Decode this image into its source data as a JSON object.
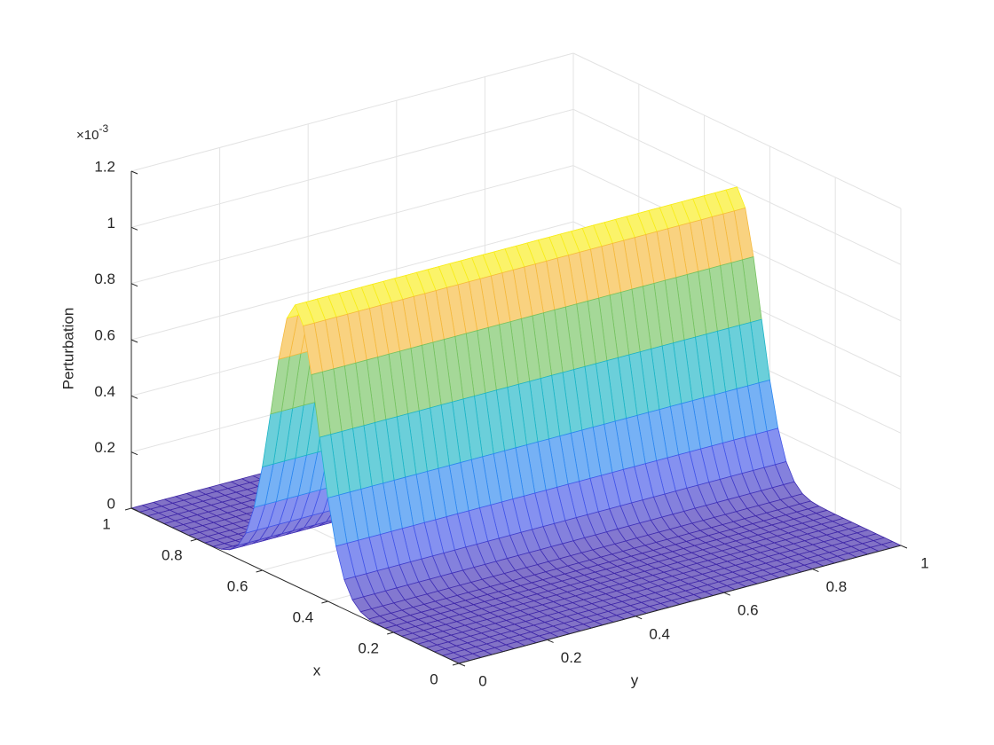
{
  "chart_data": {
    "type": "mesh",
    "zlabel": "Perturbation",
    "xlabel": "x",
    "ylabel": "y",
    "z_exponent_base": "×10",
    "z_exponent": "-3",
    "x": [
      0,
      0.025,
      0.05,
      0.075,
      0.1,
      0.125,
      0.15,
      0.175,
      0.2,
      0.225,
      0.25,
      0.275,
      0.3,
      0.325,
      0.35,
      0.375,
      0.4,
      0.425,
      0.45,
      0.475,
      0.5,
      0.525,
      0.55,
      0.575,
      0.6,
      0.625,
      0.65,
      0.675,
      0.7,
      0.725,
      0.75,
      0.775,
      0.8,
      0.825,
      0.85,
      0.875,
      0.9,
      0.925,
      0.95,
      0.975,
      1
    ],
    "y": [
      0,
      0.025,
      0.05,
      0.075,
      0.1,
      0.125,
      0.15,
      0.175,
      0.2,
      0.225,
      0.25,
      0.275,
      0.3,
      0.325,
      0.35,
      0.375,
      0.4,
      0.425,
      0.45,
      0.475,
      0.5,
      0.525,
      0.55,
      0.575,
      0.6,
      0.625,
      0.65,
      0.675,
      0.7,
      0.725,
      0.75,
      0.775,
      0.8,
      0.825,
      0.85,
      0.875,
      0.9,
      0.925,
      0.95,
      0.975,
      1
    ],
    "z": [
      0,
      0,
      0,
      0,
      0,
      0,
      0,
      0,
      0,
      0.001,
      0.002,
      0.006,
      0.018,
      0.047,
      0.105,
      0.21,
      0.368,
      0.57,
      0.779,
      0.939,
      1,
      0.939,
      0.779,
      0.57,
      0.368,
      0.21,
      0.105,
      0.047,
      0.018,
      0.006,
      0.002,
      0.001,
      0,
      0,
      0,
      0,
      0,
      0,
      0,
      0,
      0
    ],
    "xlim": [
      0,
      1
    ],
    "ylim": [
      0,
      1
    ],
    "zlim": [
      0,
      1.2
    ],
    "xticks": [
      0,
      0.2,
      0.4,
      0.6,
      0.8,
      1
    ],
    "yticks": [
      0,
      0.2,
      0.4,
      0.6,
      0.8,
      1
    ],
    "zticks": [
      0,
      0.2,
      0.4,
      0.6,
      0.8,
      1,
      1.2
    ],
    "grid": true,
    "colormap": "parula"
  }
}
